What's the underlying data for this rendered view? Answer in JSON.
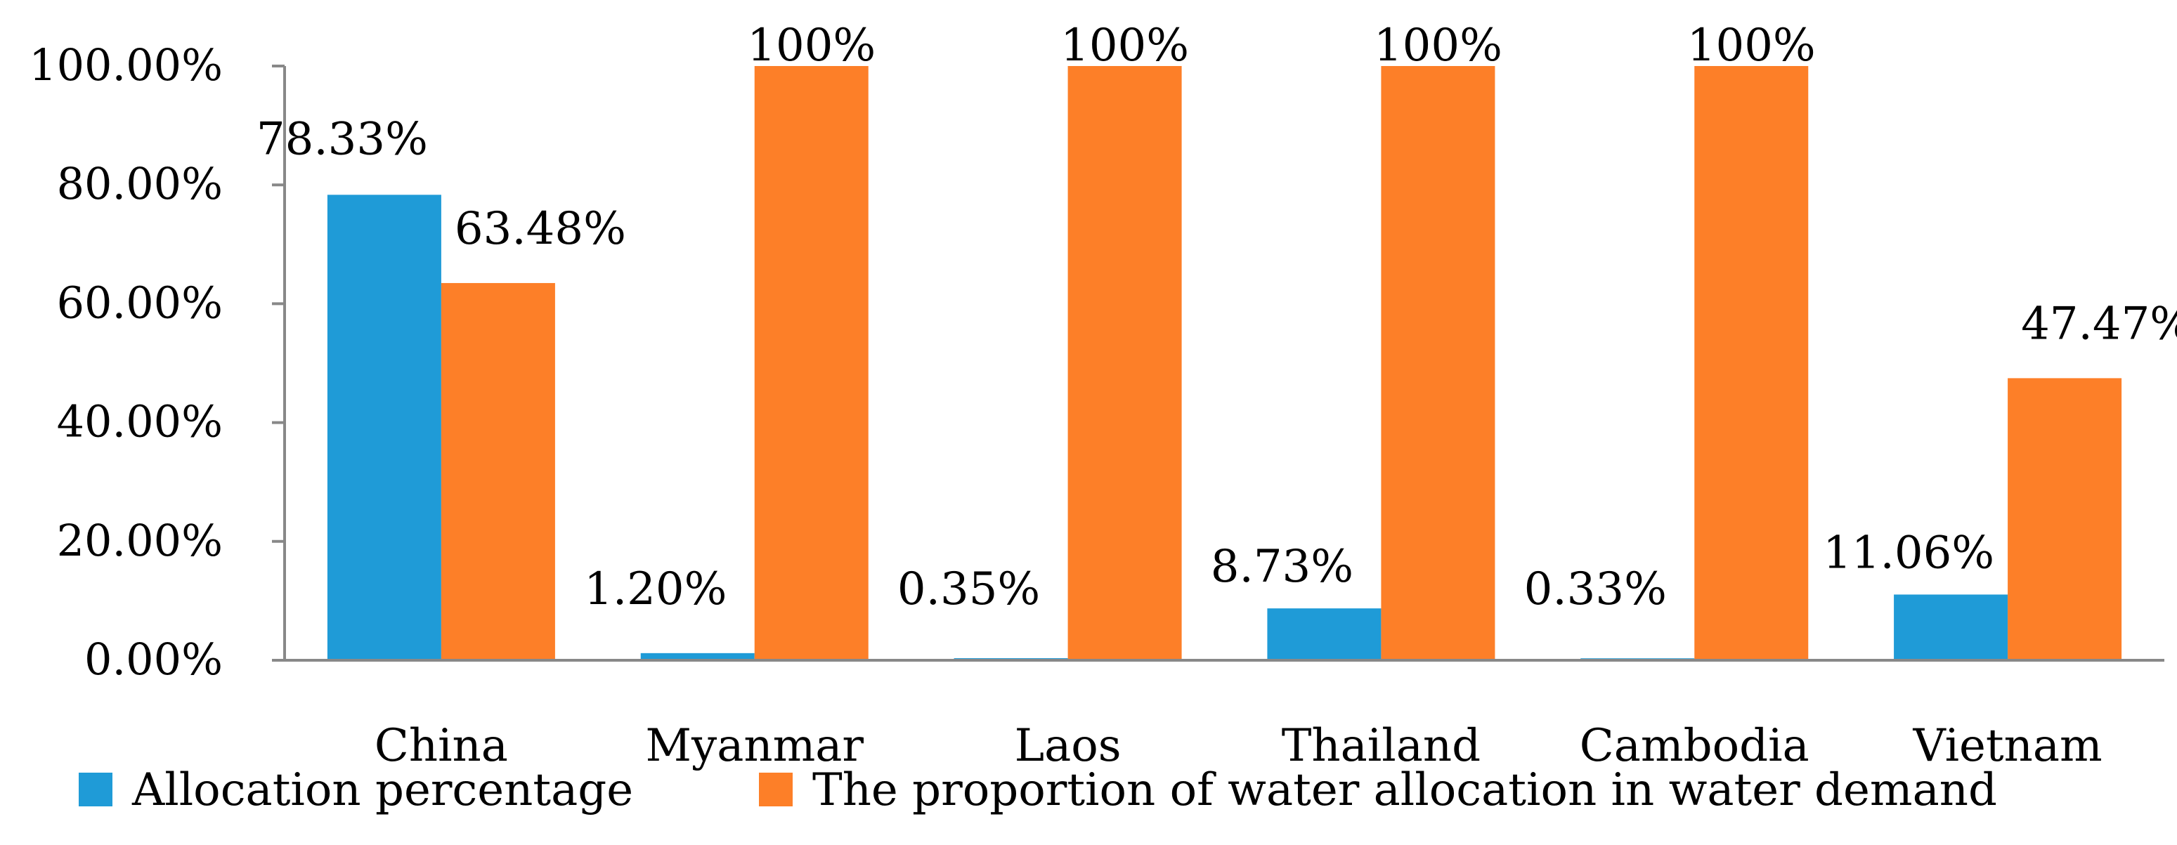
{
  "chart_data": {
    "type": "bar",
    "categories": [
      "China",
      "Myanmar",
      "Laos",
      "Thailand",
      "Cambodia",
      "Vietnam"
    ],
    "series": [
      {
        "name": "Allocation percentage",
        "color": "#1f9bd7",
        "values": [
          78.33,
          1.2,
          0.35,
          8.73,
          0.33,
          11.06
        ],
        "labels": [
          "78.33%",
          "1.20%",
          "0.35%",
          "8.73%",
          "0.33%",
          "11.06%"
        ]
      },
      {
        "name": "The proportion of water allocation in water demand",
        "color": "#fd7f28",
        "values": [
          63.48,
          100,
          100,
          100,
          100,
          47.47
        ],
        "labels": [
          "63.48%",
          "100%",
          "100%",
          "100%",
          "100%",
          "47.47%"
        ]
      }
    ],
    "y_ticks": [
      "0.00%",
      "20.00%",
      "40.00%",
      "60.00%",
      "80.00%",
      "100.00%"
    ],
    "ylim": [
      0,
      100
    ],
    "grid": false,
    "legend_position": "bottom"
  }
}
